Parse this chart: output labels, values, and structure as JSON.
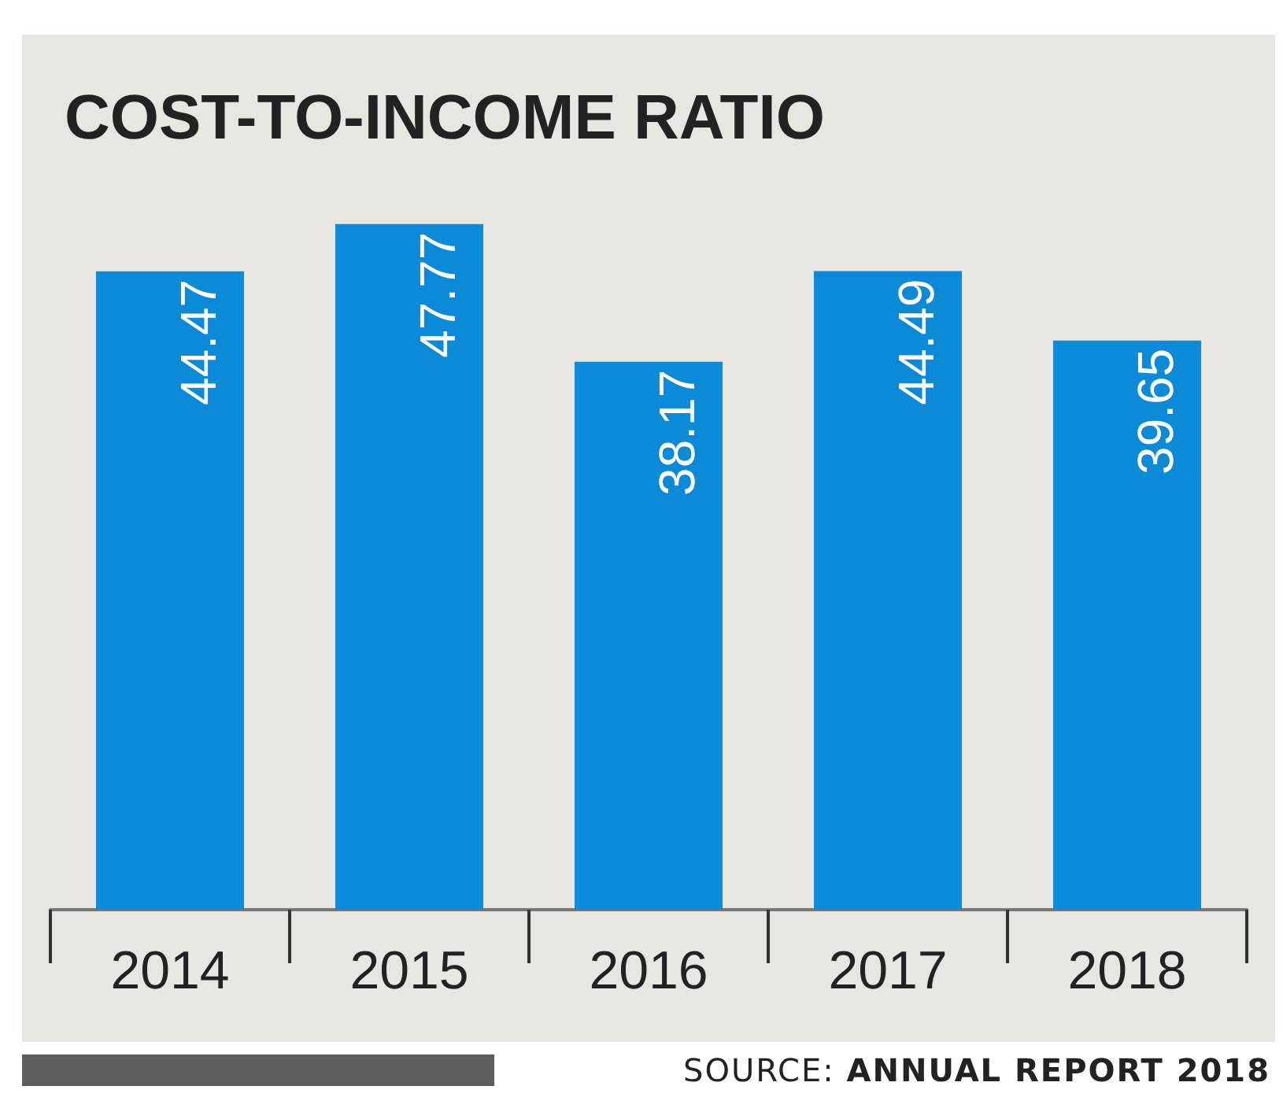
{
  "chart_data": {
    "type": "bar",
    "title": "COST-TO-INCOME RATIO",
    "categories": [
      "2014",
      "2015",
      "2016",
      "2017",
      "2018"
    ],
    "values": [
      44.47,
      47.77,
      38.17,
      44.49,
      39.65
    ],
    "color": "#0b8ad8",
    "data_labels": true,
    "annotations": [
      "SOURCE: ANNUAL REPORT 2018"
    ]
  }
}
